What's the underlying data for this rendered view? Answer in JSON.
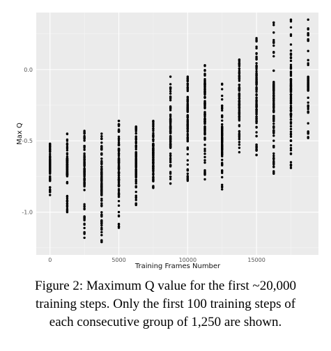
{
  "chart_data": {
    "type": "scatter",
    "xlabel": "Training Frames Number",
    "ylabel": "Max Q",
    "xlim": [
      -1000,
      19500
    ],
    "ylim": [
      -1.3,
      0.4
    ],
    "x_ticks": [
      0,
      5000,
      10000,
      15000
    ],
    "x_tick_labels": [
      "0",
      "5000",
      "10000",
      "15000"
    ],
    "y_ticks": [
      -1.0,
      -0.5,
      0.0
    ],
    "y_tick_labels": [
      "-1.0",
      "-0.5",
      "0.0"
    ],
    "grid": true,
    "background": "#ebebeb",
    "point_color": "#000000",
    "groups": [
      {
        "x": 0,
        "min": -0.88,
        "max": -0.52,
        "q1": -0.73,
        "q3": -0.63
      },
      {
        "x": 1250,
        "min": -1.0,
        "max": -0.45,
        "q1": -0.74,
        "q3": -0.62
      },
      {
        "x": 2500,
        "min": -1.18,
        "max": -0.43,
        "q1": -0.82,
        "q3": -0.62
      },
      {
        "x": 3750,
        "min": -1.21,
        "max": -0.45,
        "q1": -0.95,
        "q3": -0.7
      },
      {
        "x": 5000,
        "min": -1.11,
        "max": -0.36,
        "q1": -0.82,
        "q3": -0.55
      },
      {
        "x": 6250,
        "min": -0.95,
        "max": -0.4,
        "q1": -0.75,
        "q3": -0.58
      },
      {
        "x": 7500,
        "min": -0.83,
        "max": -0.36,
        "q1": -0.7,
        "q3": -0.52
      },
      {
        "x": 8750,
        "min": -0.8,
        "max": -0.05,
        "q1": -0.55,
        "q3": -0.35
      },
      {
        "x": 10000,
        "min": -0.78,
        "max": -0.05,
        "q1": -0.45,
        "q3": -0.2
      },
      {
        "x": 11250,
        "min": -0.77,
        "max": 0.03,
        "q1": -0.45,
        "q3": -0.15
      },
      {
        "x": 12500,
        "min": -0.84,
        "max": -0.1,
        "q1": -0.6,
        "q3": -0.4
      },
      {
        "x": 13750,
        "min": -0.58,
        "max": 0.07,
        "q1": -0.35,
        "q3": -0.12
      },
      {
        "x": 15000,
        "min": -0.6,
        "max": 0.22,
        "q1": -0.35,
        "q3": -0.05
      },
      {
        "x": 16250,
        "min": -0.73,
        "max": 0.33,
        "q1": -0.45,
        "q3": -0.1
      },
      {
        "x": 17500,
        "min": -0.69,
        "max": 0.35,
        "q1": -0.4,
        "q3": -0.05
      },
      {
        "x": 18750,
        "min": -0.48,
        "max": 0.35,
        "q1": -0.15,
        "q3": -0.05
      }
    ],
    "points_per_group": 100
  },
  "caption": {
    "line1": "Figure 2: Maximum Q value for the first ~20,000",
    "line2": "training steps. Only the first 100 training steps of",
    "line3": "each consecutive group of 1,250 are shown."
  }
}
